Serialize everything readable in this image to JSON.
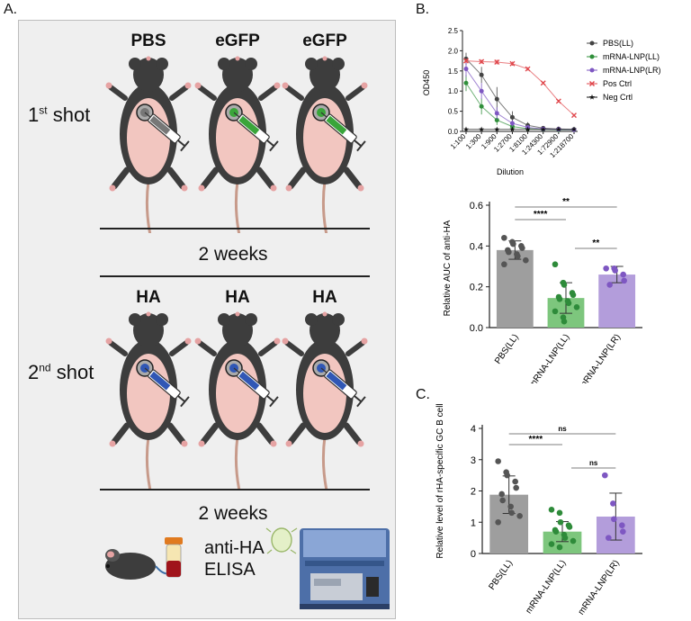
{
  "panel_a": {
    "letter": "A.",
    "row1_titles": [
      "PBS",
      "eGFP",
      "eGFP"
    ],
    "row1_colors": [
      "#7a7a7a",
      "#3aa53a",
      "#3aa53a"
    ],
    "row2_titles": [
      "HA",
      "HA",
      "HA"
    ],
    "row2_color": "#2f78c4",
    "first_shot_main": "1",
    "first_shot_sup": "st",
    "first_shot_rest": " shot",
    "second_shot_main": "2",
    "second_shot_sup": "nd",
    "second_shot_rest": " shot",
    "weeks_1": "2 weeks",
    "weeks_2": "2 weeks",
    "assay_line1": "anti-HA",
    "assay_line2": "ELISA"
  },
  "panel_b_letter": "B.",
  "panel_c_letter": "C.",
  "chart_data": [
    {
      "type": "line",
      "xlabel": "Dilution",
      "ylabel": "OD450",
      "categories": [
        "1:100",
        "1:300",
        "1:900",
        "1:2700",
        "1:8100",
        "1:24300",
        "1:72900",
        "1:218700"
      ],
      "ylim": [
        0,
        2.5
      ],
      "yticks": [
        "0.0",
        "0.5",
        "1.0",
        "1.5",
        "2.0",
        "2.5"
      ],
      "legend_position": "right",
      "series": [
        {
          "name": "PBS(LL)",
          "color": "#444444",
          "marker": "circle",
          "values": [
            1.8,
            1.4,
            0.8,
            0.35,
            0.15,
            0.08,
            0.06,
            0.05
          ],
          "err": [
            0.15,
            0.2,
            0.3,
            0.15,
            0.08,
            0.03,
            0.02,
            0.02
          ]
        },
        {
          "name": "mRNA-LNP(LL)",
          "color": "#2f8f3a",
          "marker": "circle",
          "values": [
            1.2,
            0.62,
            0.28,
            0.12,
            0.07,
            0.05,
            0.04,
            0.04
          ],
          "err": [
            0.2,
            0.2,
            0.12,
            0.05,
            0.03,
            0.02,
            0.01,
            0.01
          ]
        },
        {
          "name": "mRNA-LNP(LR)",
          "color": "#7e57c2",
          "marker": "circle",
          "values": [
            1.55,
            1.0,
            0.45,
            0.2,
            0.1,
            0.06,
            0.05,
            0.04
          ],
          "err": [
            0.2,
            0.2,
            0.15,
            0.08,
            0.04,
            0.02,
            0.01,
            0.01
          ]
        },
        {
          "name": "Pos Ctrl",
          "color": "#e0474c",
          "marker": "x",
          "values": [
            1.75,
            1.73,
            1.72,
            1.68,
            1.55,
            1.2,
            0.75,
            0.4
          ],
          "err": [
            0.05,
            0.05,
            0.06,
            0.05,
            0.04,
            0.03,
            0.03,
            0.02
          ]
        },
        {
          "name": "Neg Crtl",
          "color": "#111111",
          "marker": "star",
          "values": [
            0.05,
            0.05,
            0.05,
            0.05,
            0.05,
            0.05,
            0.05,
            0.05
          ],
          "err": [
            0,
            0,
            0,
            0,
            0,
            0,
            0,
            0
          ]
        }
      ]
    },
    {
      "type": "bar",
      "ylabel": "Relative AUC of anti-HA",
      "categories": [
        "PBS(LL)",
        "mRNA-LNP(LL)",
        "mRNA-LNP(LR)"
      ],
      "values": [
        0.38,
        0.145,
        0.26
      ],
      "err": [
        0.045,
        0.075,
        0.04
      ],
      "colors": [
        "#9e9e9e",
        "#7dc67d",
        "#b39ddb"
      ],
      "dot_colors": [
        "#555555",
        "#2e8b3a",
        "#7e57c2"
      ],
      "points": [
        [
          0.44,
          0.42,
          0.41,
          0.4,
          0.39,
          0.38,
          0.37,
          0.36,
          0.35,
          0.33,
          0.31
        ],
        [
          0.31,
          0.22,
          0.21,
          0.17,
          0.16,
          0.15,
          0.14,
          0.13,
          0.12,
          0.1,
          0.08,
          0.05,
          0.03
        ],
        [
          0.29,
          0.29,
          0.28,
          0.26,
          0.23,
          0.21
        ]
      ],
      "ylim": [
        0,
        0.6
      ],
      "yticks": [
        "0.0",
        "0.2",
        "0.4",
        "0.6"
      ],
      "significance": [
        {
          "from": 0,
          "to": 1,
          "label": "****"
        },
        {
          "from": 0,
          "to": 2,
          "label": "**"
        },
        {
          "from": 1,
          "to": 2,
          "label": "**"
        }
      ]
    },
    {
      "type": "bar",
      "ylabel": "Relative level of rHA-specific GC B cells",
      "categories": [
        "PBS(LL)",
        "mRNA-LNP(LL)",
        "mRNA-LNP(LR)"
      ],
      "values": [
        1.88,
        0.7,
        1.18
      ],
      "err": [
        0.6,
        0.32,
        0.75
      ],
      "colors": [
        "#9e9e9e",
        "#7dc67d",
        "#b39ddb"
      ],
      "dot_colors": [
        "#555555",
        "#2e8b3a",
        "#7e57c2"
      ],
      "points": [
        [
          2.95,
          2.6,
          2.5,
          2.3,
          2.1,
          1.9,
          1.7,
          1.5,
          1.3,
          1.2,
          1.0
        ],
        [
          1.4,
          1.3,
          1.0,
          0.9,
          0.85,
          0.75,
          0.7,
          0.6,
          0.5,
          0.4,
          0.3,
          0.2
        ],
        [
          2.5,
          1.6,
          1.1,
          0.9,
          0.7,
          0.5
        ]
      ],
      "ylim": [
        0,
        4
      ],
      "yticks": [
        "0",
        "1",
        "2",
        "3",
        "4"
      ],
      "significance": [
        {
          "from": 0,
          "to": 1,
          "label": "****"
        },
        {
          "from": 0,
          "to": 2,
          "label": "ns"
        },
        {
          "from": 1,
          "to": 2,
          "label": "ns"
        }
      ]
    }
  ]
}
